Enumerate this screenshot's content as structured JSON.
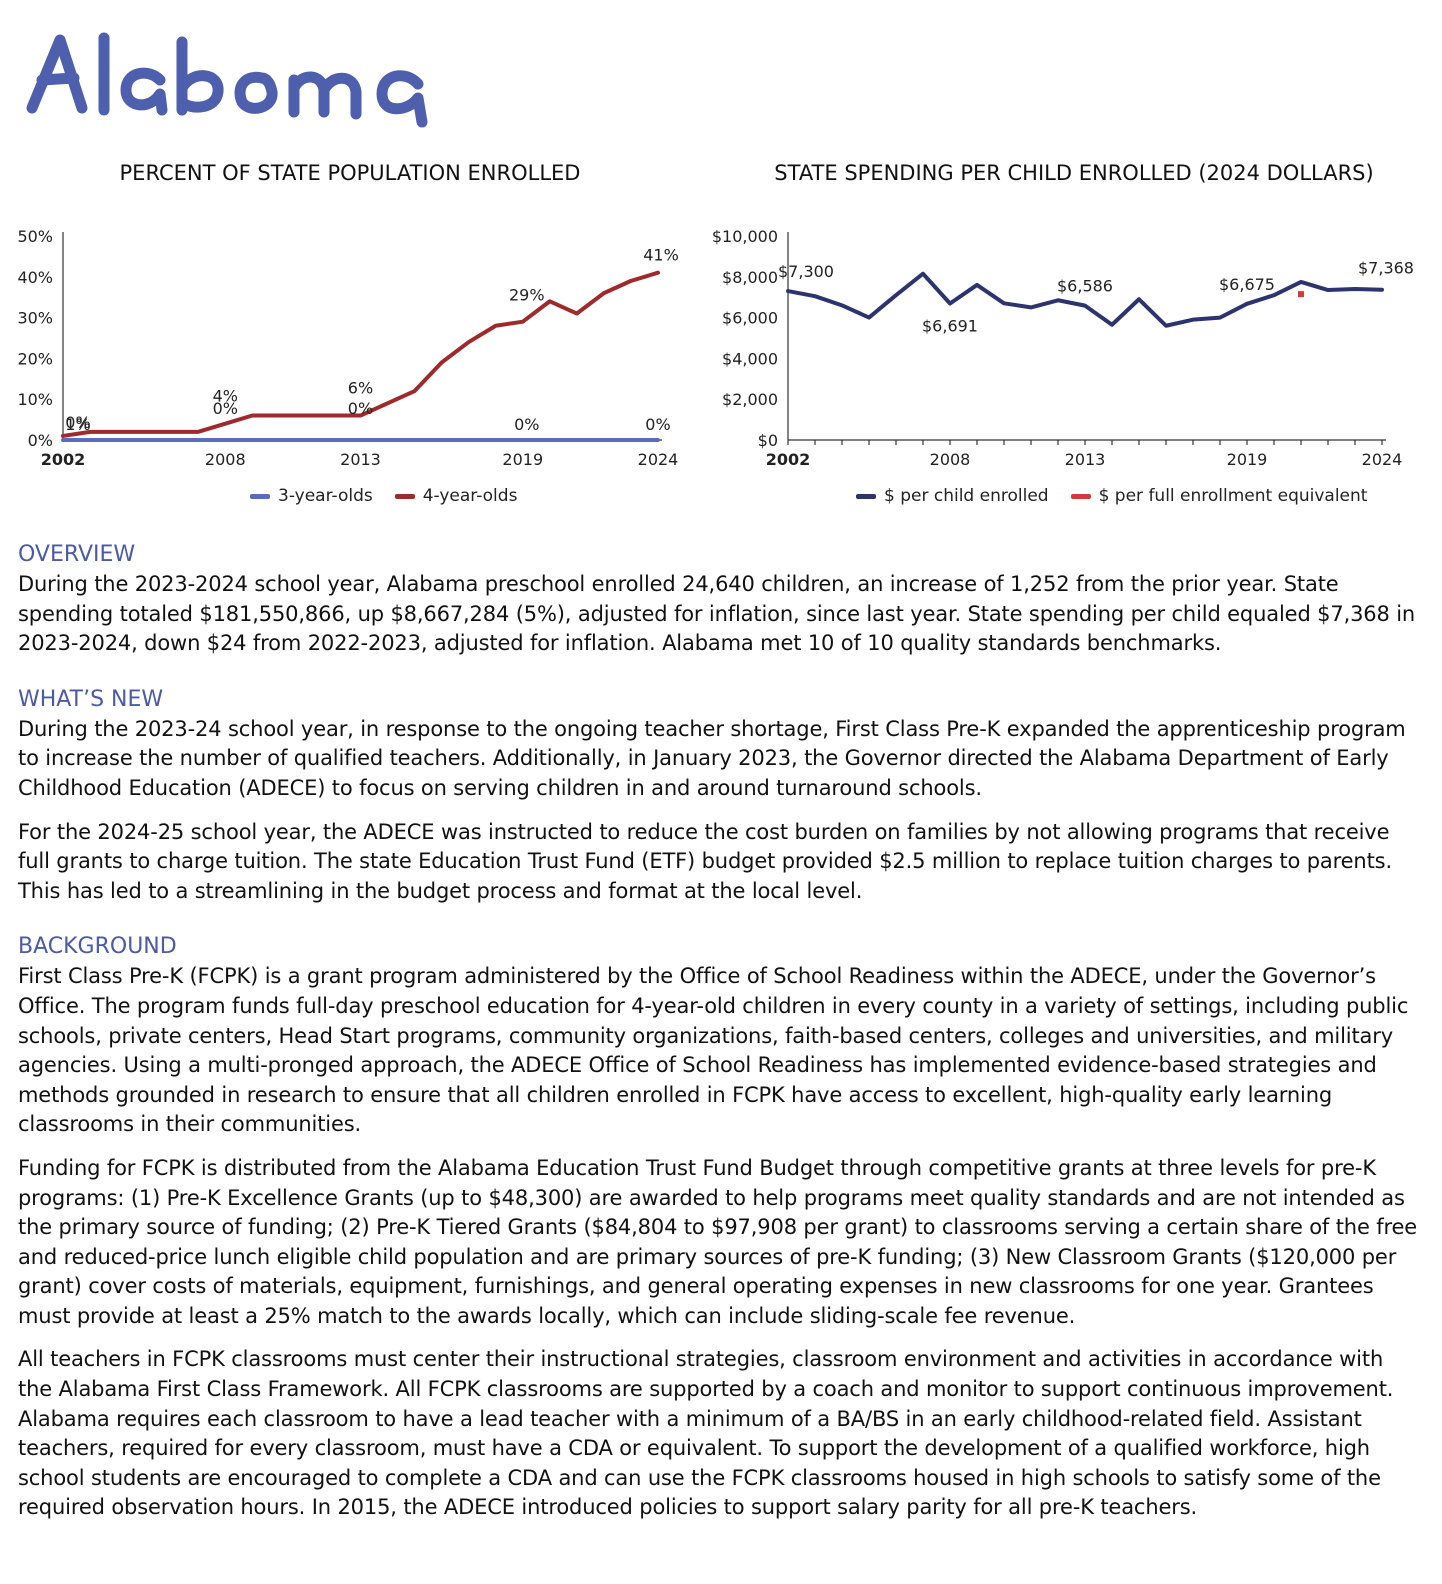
{
  "state_name": "Alabama",
  "colors": {
    "heading_blue": "#4a5aa8",
    "three_year_olds": "#5a6cc0",
    "four_year_olds": "#9e2a2b",
    "per_child": "#2c3470",
    "per_fte": "#d6393c"
  },
  "chart_data": [
    {
      "type": "line",
      "title": "PERCENT OF STATE POPULATION ENROLLED",
      "x": [
        2002,
        2003,
        2004,
        2005,
        2006,
        2007,
        2008,
        2009,
        2010,
        2011,
        2012,
        2013,
        2014,
        2015,
        2016,
        2017,
        2018,
        2019,
        2020,
        2021,
        2022,
        2023,
        2024
      ],
      "xticks": [
        "2002",
        "2008",
        "2013",
        "2019",
        "2024"
      ],
      "yticks": [
        "0%",
        "10%",
        "20%",
        "30%",
        "40%",
        "50%"
      ],
      "ylim": [
        0,
        50
      ],
      "series": [
        {
          "name": "3-year-olds",
          "values": [
            0,
            0,
            0,
            0,
            0,
            0,
            0,
            0,
            0,
            0,
            0,
            0,
            0,
            0,
            0,
            0,
            0,
            0,
            0,
            0,
            0,
            0,
            0
          ]
        },
        {
          "name": "4-year-olds",
          "values": [
            1,
            2,
            2,
            2,
            2,
            2,
            4,
            6,
            6,
            6,
            6,
            6,
            9,
            12,
            19,
            24,
            28,
            29,
            34,
            31,
            36,
            39,
            41
          ]
        }
      ],
      "data_labels": [
        {
          "x": 2002,
          "text": "1%",
          "value": 1
        },
        {
          "x": 2002,
          "text": "0%",
          "value": 0
        },
        {
          "x": 2008,
          "text": "4%",
          "value": 4
        },
        {
          "x": 2008,
          "text": "0%",
          "value": 0
        },
        {
          "x": 2013,
          "text": "6%",
          "value": 6
        },
        {
          "x": 2013,
          "text": "0%",
          "value": 0
        },
        {
          "x": 2019,
          "text": "29%",
          "value": 29
        },
        {
          "x": 2019,
          "text": "0%",
          "value": 0
        },
        {
          "x": 2024,
          "text": "41%",
          "value": 41
        },
        {
          "x": 2024,
          "text": "0%",
          "value": 0
        }
      ],
      "legend": [
        "3-year-olds",
        "4-year-olds"
      ]
    },
    {
      "type": "line",
      "title": "STATE SPENDING PER CHILD ENROLLED (2024 DOLLARS)",
      "x": [
        2002,
        2003,
        2004,
        2005,
        2006,
        2007,
        2008,
        2009,
        2010,
        2011,
        2012,
        2013,
        2014,
        2015,
        2016,
        2017,
        2018,
        2019,
        2020,
        2021,
        2022,
        2023,
        2024
      ],
      "xticks": [
        "2002",
        "2008",
        "2013",
        "2019",
        "2024"
      ],
      "yticks": [
        "$0",
        "$2,000",
        "$4,000",
        "$6,000",
        "$8,000",
        "$10,000"
      ],
      "ylim": [
        0,
        10000
      ],
      "series": [
        {
          "name": "$ per child enrolled",
          "values": [
            7300,
            7050,
            6600,
            6000,
            7100,
            8150,
            6691,
            7600,
            6700,
            6500,
            6850,
            6586,
            5650,
            6900,
            5600,
            5900,
            6000,
            6675,
            7100,
            7750,
            7350,
            7400,
            7368
          ]
        },
        {
          "name": "$ per full enrollment equivalent",
          "values": [
            null,
            null,
            null,
            null,
            null,
            null,
            null,
            null,
            null,
            null,
            null,
            null,
            null,
            null,
            null,
            null,
            null,
            null,
            null,
            7150,
            null,
            null,
            null
          ]
        }
      ],
      "data_labels": [
        {
          "x": 2002,
          "text": "$7,300",
          "value": 7300
        },
        {
          "x": 2008,
          "text": "$6,691",
          "value": 6691
        },
        {
          "x": 2013,
          "text": "$6,586",
          "value": 6586
        },
        {
          "x": 2019,
          "text": "$6,675",
          "value": 6675
        },
        {
          "x": 2024,
          "text": "$7,368",
          "value": 7368
        }
      ],
      "legend": [
        "$ per child enrolled",
        "$ per full enrollment equivalent"
      ]
    }
  ],
  "sections": [
    {
      "heading": "OVERVIEW",
      "paragraphs": [
        "During the 2023-2024 school year, Alabama preschool enrolled 24,640 children, an increase of 1,252 from the prior year. State spending totaled $181,550,866, up $8,667,284 (5%), adjusted for inflation, since last year. State spending per child equaled $7,368 in 2023-2024, down $24 from 2022-2023, adjusted for inflation. Alabama met 10 of 10 quality standards benchmarks."
      ]
    },
    {
      "heading": "WHAT’S NEW",
      "paragraphs": [
        "During the 2023-24 school year, in response to the ongoing teacher shortage, First Class Pre-K expanded the apprenticeship program to increase the number of qualified teachers. Additionally, in January 2023, the Governor directed the Alabama Department of Early Childhood Education (ADECE) to focus on serving children in and around turnaround schools.",
        "For the 2024-25 school year, the ADECE was instructed to reduce the cost burden on families by not allowing programs that receive full grants to charge tuition. The state Education Trust Fund (ETF) budget provided $2.5 million to replace tuition charges to parents. This has led to a streamlining in the budget process and format at the local level."
      ]
    },
    {
      "heading": "BACKGROUND",
      "paragraphs": [
        "First Class Pre-K (FCPK) is a grant program administered by the Office of School Readiness within the ADECE, under the Governor’s Office. The program funds full-day preschool education for 4-year-old children in every county in a variety of settings, including public schools, private centers, Head Start programs, community organizations, faith-based centers, colleges and universities, and military agencies. Using a multi-pronged approach, the ADECE Office of School Readiness has implemented evidence-based strategies and methods grounded in research to ensure that all children enrolled in FCPK have access to excellent, high-quality early learning classrooms in their communities.",
        "Funding for FCPK is distributed from the Alabama Education Trust Fund Budget through competitive grants at three levels for pre-K programs: (1) Pre-K Excellence Grants (up to $48,300) are awarded to help programs meet quality standards and are not intended as the primary source of funding; (2) Pre-K Tiered Grants ($84,804 to $97,908 per grant) to classrooms serving a certain share of the free and reduced-price lunch eligible child population and are primary sources of pre-K funding; (3) New Classroom Grants ($120,000 per grant) cover costs of materials, equipment, furnishings, and general operating expenses in new classrooms for one year. Grantees must provide at least a 25% match to the awards locally, which can include sliding-scale fee revenue.",
        "All teachers in FCPK classrooms must center their instructional strategies, classroom environment and activities in accordance with the Alabama First Class Framework. All FCPK classrooms are supported by a coach and monitor to support continuous improvement. Alabama requires each classroom to have a lead teacher with a minimum of a BA/BS in an early childhood-related field. Assistant teachers, required for every classroom, must have a CDA or equivalent. To support the development of a qualified workforce, high school students are encouraged to complete a CDA and can use the FCPK classrooms housed in high schools to satisfy some of the required observation hours. In 2015, the ADECE introduced policies to support salary parity for all pre-K teachers."
      ]
    }
  ]
}
